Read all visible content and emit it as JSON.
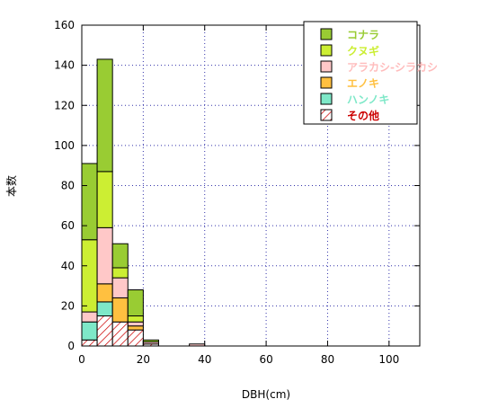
{
  "chart_data": {
    "type": "bar",
    "stacked": true,
    "xlabel": "DBH(cm)",
    "ylabel": "本数",
    "xlim": [
      0,
      110
    ],
    "ylim": [
      0,
      160
    ],
    "xticks": [
      "0",
      "20",
      "40",
      "60",
      "80",
      "100"
    ],
    "yticks": [
      "0",
      "20",
      "40",
      "60",
      "80",
      "100",
      "120",
      "140",
      "160"
    ],
    "bin_width": 5,
    "bins": [
      0,
      5,
      10,
      15,
      20,
      25,
      30,
      35
    ],
    "grid": "dotted",
    "legend_position": "top-right",
    "series": [
      {
        "name": "その他",
        "color": "#cc0000",
        "fill": "hatch",
        "values": [
          3,
          15,
          12,
          8,
          1,
          0,
          0,
          0
        ]
      },
      {
        "name": "ハンノキ",
        "color": "#7ee8c8",
        "fill": "solid",
        "values": [
          9,
          7,
          0,
          0,
          0,
          0,
          0,
          0
        ]
      },
      {
        "name": "エノキ",
        "color": "#ffc040",
        "fill": "solid",
        "values": [
          0,
          9,
          12,
          2,
          0,
          0,
          0,
          0
        ]
      },
      {
        "name": "アラカシ-シラカシ",
        "color": "#ffc8c8",
        "fill": "solid",
        "values": [
          5,
          28,
          10,
          2,
          1,
          0,
          0,
          1
        ]
      },
      {
        "name": "クヌギ",
        "color": "#ccee33",
        "fill": "solid",
        "values": [
          36,
          28,
          5,
          3,
          0,
          0,
          0,
          0
        ]
      },
      {
        "name": "コナラ",
        "color": "#99cc33",
        "fill": "solid",
        "values": [
          38,
          56,
          12,
          13,
          1,
          0,
          0,
          0
        ]
      }
    ]
  }
}
